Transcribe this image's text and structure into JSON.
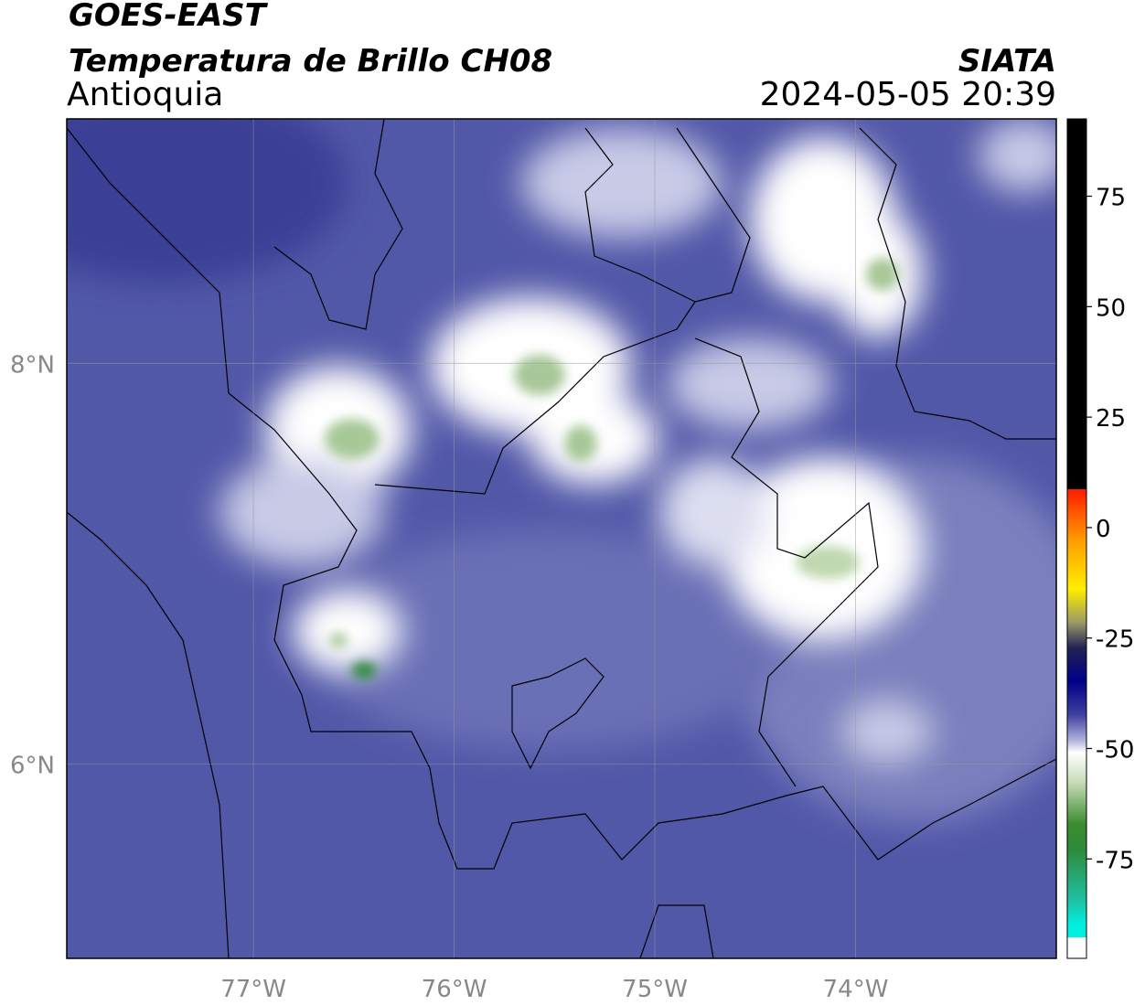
{
  "header": {
    "title": "GOES-EAST",
    "subtitle": "Temperatura de Brillo CH08",
    "region": "Antioquia",
    "source": "SIATA",
    "datetime": "2024-05-05 20:39"
  },
  "map": {
    "lonlim": [
      -77.93,
      -73.0
    ],
    "latlim": [
      5.03,
      9.22
    ],
    "lonticks": [
      {
        "value": -77,
        "label": "77°W"
      },
      {
        "value": -76,
        "label": "76°W"
      },
      {
        "value": -75,
        "label": "75°W"
      },
      {
        "value": -74,
        "label": "74°W"
      }
    ],
    "latticks": [
      {
        "value": 8,
        "label": "8°N"
      },
      {
        "value": 6,
        "label": "6°N"
      }
    ]
  },
  "colorbar": {
    "lim": [
      -97.5,
      92.5
    ],
    "ticks": [
      75,
      50,
      25,
      0,
      -25,
      -50,
      -75
    ]
  }
}
